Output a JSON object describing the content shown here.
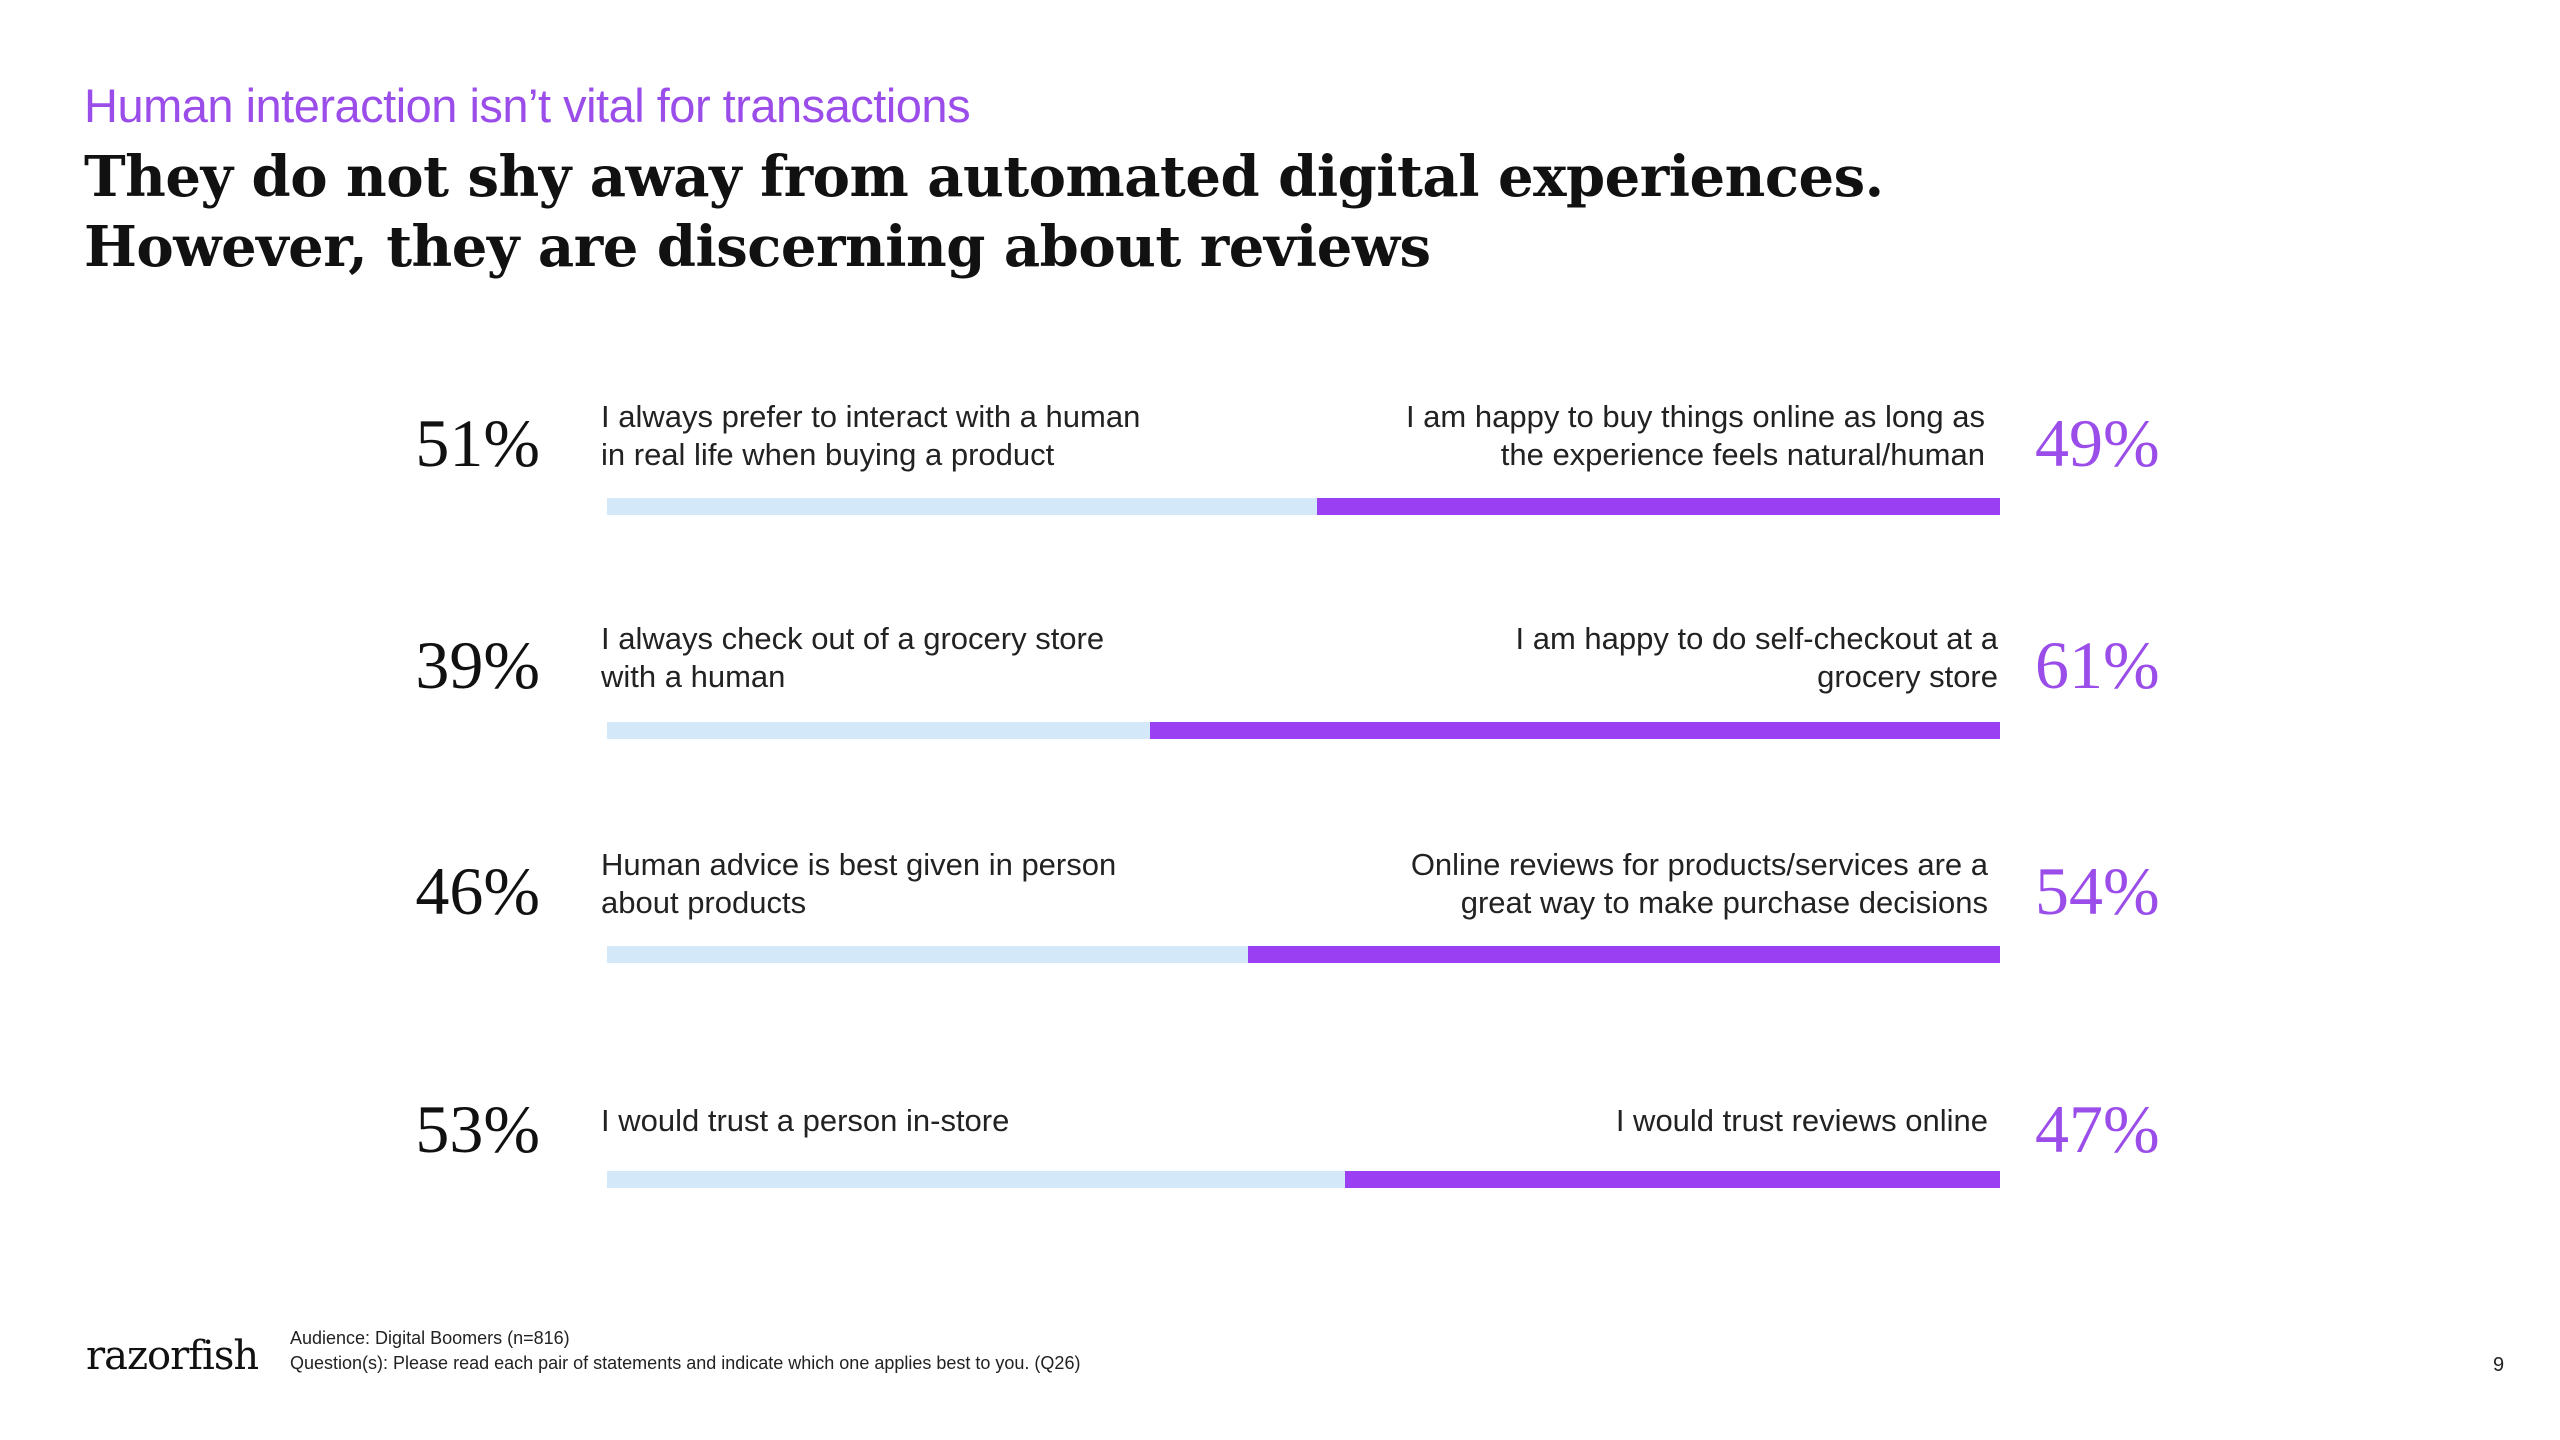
{
  "header": {
    "kicker": "Human interaction isn’t vital for transactions",
    "headline_line1": "They do not shy away from automated digital experiences.",
    "headline_line2": "However, they are discerning about reviews"
  },
  "chart_data": {
    "type": "bar",
    "orientation": "horizontal-stacked-paired",
    "rows": [
      {
        "left_value": 51,
        "left_label": "51%",
        "left_statement_line1": "I always prefer to interact with a human",
        "left_statement_line2": "in real life when buying a product",
        "right_value": 49,
        "right_label": "49%",
        "right_statement_line1": "I am happy to buy things online as long as",
        "right_statement_line2": "the experience feels natural/human"
      },
      {
        "left_value": 39,
        "left_label": "39%",
        "left_statement_line1": "I always check out of a grocery store",
        "left_statement_line2": "with a human",
        "right_value": 61,
        "right_label": "61%",
        "right_statement_line1": "I am happy to do self-checkout at a",
        "right_statement_line2": "grocery store"
      },
      {
        "left_value": 46,
        "left_label": "46%",
        "left_statement_line1": "Human advice is best given in person",
        "left_statement_line2": "about products",
        "right_value": 54,
        "right_label": "54%",
        "right_statement_line1": "Online reviews for products/services are a",
        "right_statement_line2": "great way to make purchase decisions"
      },
      {
        "left_value": 53,
        "left_label": "53%",
        "left_statement_line1": "I would trust a person in-store",
        "left_statement_line2": "",
        "right_value": 47,
        "right_label": "47%",
        "right_statement_line1": "I would trust reviews online",
        "right_statement_line2": ""
      }
    ],
    "colors": {
      "left": "#d3e8f8",
      "right": "#9b3ff2",
      "accent_text": "#9b4dea"
    }
  },
  "footer": {
    "logo": "razorfish",
    "audience": "Audience: Digital Boomers (n=816)",
    "question": "Question(s): Please read each pair of statements and indicate which one applies best to you. (Q26)",
    "page_number": "9"
  }
}
